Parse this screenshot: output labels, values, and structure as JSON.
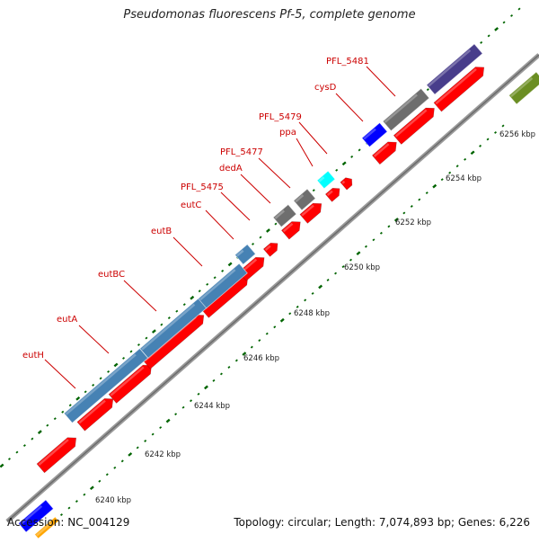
{
  "title": "Pseudomonas fluorescens Pf-5, complete genome",
  "accession": "Accession: NC_004129",
  "summary": "Topology: circular; Length: 7,074,893 bp; Genes: 6,226",
  "colors": {
    "cds_red": "#ff0000",
    "steel_blue": "#4682b4",
    "gray": "#6e6e6e",
    "slate_purple": "#483d8b",
    "cyan": "#00ffff",
    "blue": "#0000ff",
    "olive": "#6b8e23",
    "orange": "#ffa500",
    "tick_green": "#006400",
    "label_red": "#cc0000"
  },
  "scale_labels": [
    "6240 kbp",
    "6242 kbp",
    "6244 kbp",
    "6246 kbp",
    "6248 kbp",
    "6250 kbp",
    "6252 kbp",
    "6254 kbp",
    "6256 kbp"
  ],
  "gene_labels": [
    "eutH",
    "eutA",
    "eutBC",
    "eutB",
    "eutC",
    "PFL_5475",
    "dedA",
    "PFL_5477",
    "ppa",
    "PFL_5479",
    "cysD",
    "PFL_5481"
  ]
}
